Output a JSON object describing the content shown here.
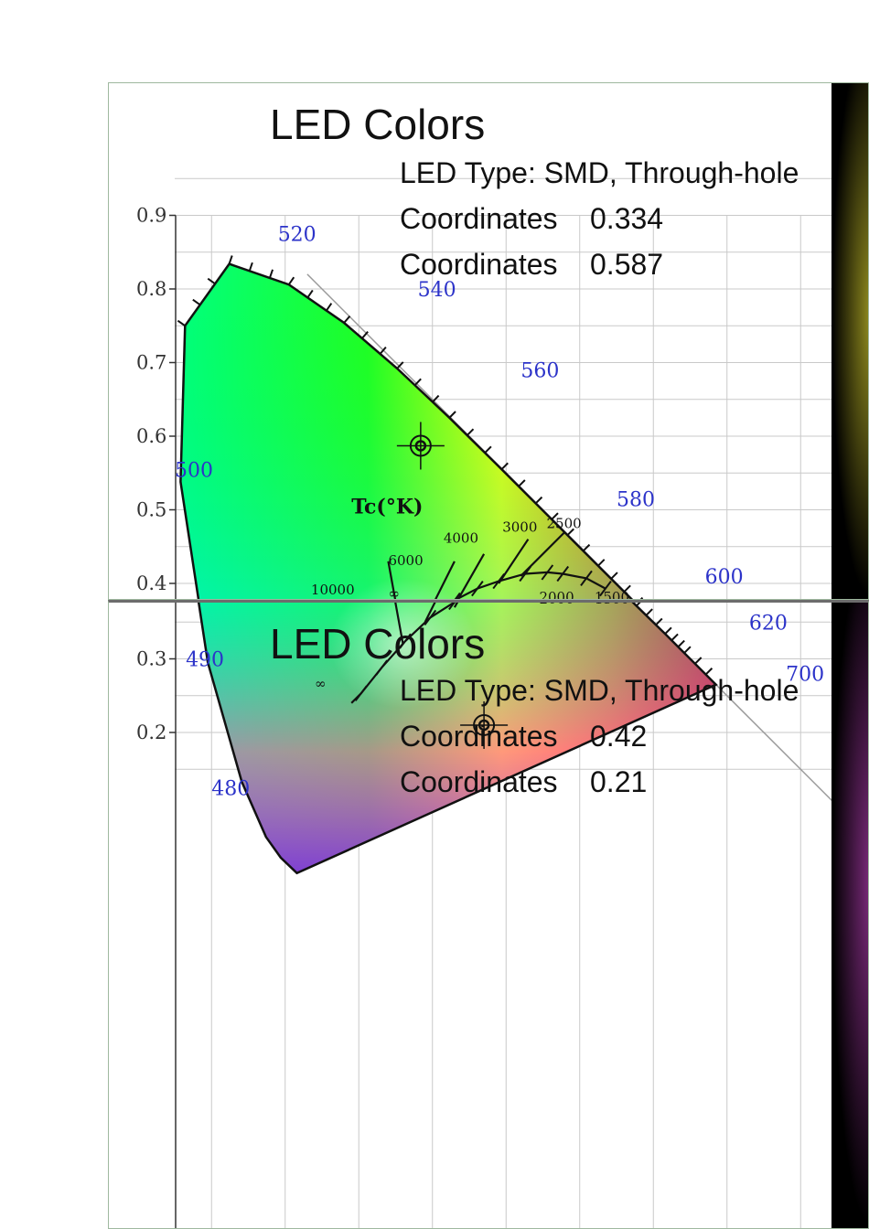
{
  "chart_data": [
    {
      "type": "scatter",
      "title": "LED Colors",
      "info": [
        {
          "label": "LED Type: SMD, Through-hole",
          "value": ""
        },
        {
          "label": "Coordinates",
          "value": "0.334"
        },
        {
          "label": "Coordinates",
          "value": "0.587"
        }
      ],
      "y_ticks": [
        "0.9",
        "0.8",
        "0.7",
        "0.6",
        "0.5",
        "0.4",
        "0.3"
      ],
      "ylim": [
        0.3,
        0.9
      ],
      "wavelength_labels": [
        "520",
        "540",
        "560",
        "500",
        "580",
        "600",
        "620",
        "490"
      ],
      "cct_labels": [
        "4000",
        "3000",
        "2500",
        "6000",
        "2000",
        "1500",
        "10000",
        "∞"
      ],
      "tc_label": "Tc(°K)",
      "marker": {
        "x": 0.334,
        "y": 0.587
      },
      "colors": {
        "glow": "#8f8a1e"
      }
    },
    {
      "type": "scatter",
      "title": "LED Colors",
      "info": [
        {
          "label": "LED Type: SMD, Through-hole",
          "value": ""
        },
        {
          "label": "Coordinates",
          "value": "0.42"
        },
        {
          "label": "Coordinates",
          "value": "0.21"
        }
      ],
      "y_ticks": [
        "0.9",
        "0.8",
        "0.7",
        "0.6",
        "0.5",
        "0.4",
        "0.3",
        "0.2"
      ],
      "ylim": [
        0.15,
        0.9
      ],
      "wavelength_labels": [
        "520",
        "540",
        "560",
        "500",
        "580",
        "600",
        "620",
        "490",
        "700",
        "480"
      ],
      "cct_labels": [
        "4000",
        "3000",
        "2500",
        "6000",
        "2000",
        "1500",
        "10000",
        "∞",
        "∞"
      ],
      "tc_label": "Tc(°K)",
      "marker": {
        "x": 0.42,
        "y": 0.21
      },
      "colors": {
        "glow": "#7a2a7a"
      }
    }
  ]
}
